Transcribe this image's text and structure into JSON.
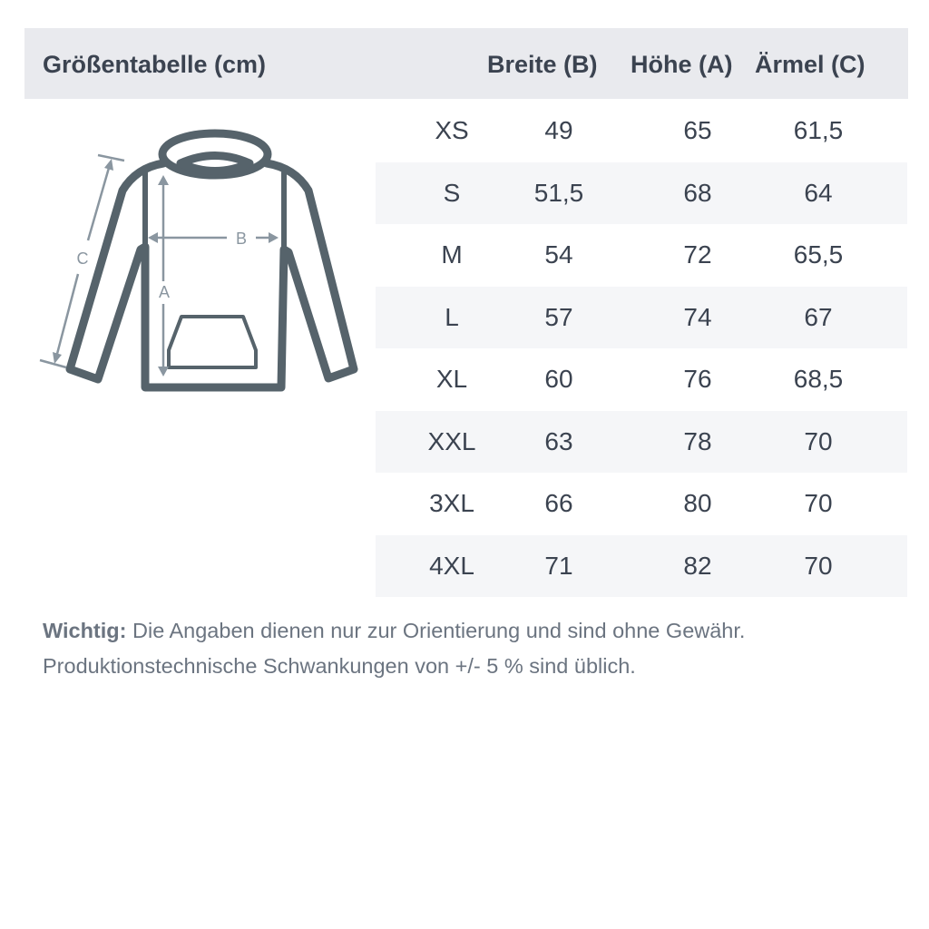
{
  "title": "Größentabelle (cm)",
  "columns": [
    "Breite (B)",
    "Höhe (A)",
    "Ärmel (C)"
  ],
  "rows": [
    {
      "size": "XS",
      "b": "49",
      "a": "65",
      "c": "61,5"
    },
    {
      "size": "S",
      "b": "51,5",
      "a": "68",
      "c": "64"
    },
    {
      "size": "M",
      "b": "54",
      "a": "72",
      "c": "65,5"
    },
    {
      "size": "L",
      "b": "57",
      "a": "74",
      "c": "67"
    },
    {
      "size": "XL",
      "b": "60",
      "a": "76",
      "c": "68,5"
    },
    {
      "size": "XXL",
      "b": "63",
      "a": "78",
      "c": "70"
    },
    {
      "size": "3XL",
      "b": "66",
      "a": "80",
      "c": "70"
    },
    {
      "size": "4XL",
      "b": "71",
      "a": "82",
      "c": "70"
    }
  ],
  "diagram": {
    "label_a": "A",
    "label_b": "B",
    "label_c": "C",
    "icon": "hoodie-icon"
  },
  "note": {
    "bold": "Wichtig:",
    "line1": " Die Angaben dienen nur zur Orientierung und sind ohne Gewähr.",
    "line2": "Produktionstechnische Schwankungen von +/- 5 % sind üblich."
  },
  "colors": {
    "header_bg": "#e9eaee",
    "text": "#3b4350",
    "stripe": "#f5f6f8",
    "hoodie": "#56636b",
    "measure": "#8a96a0"
  }
}
